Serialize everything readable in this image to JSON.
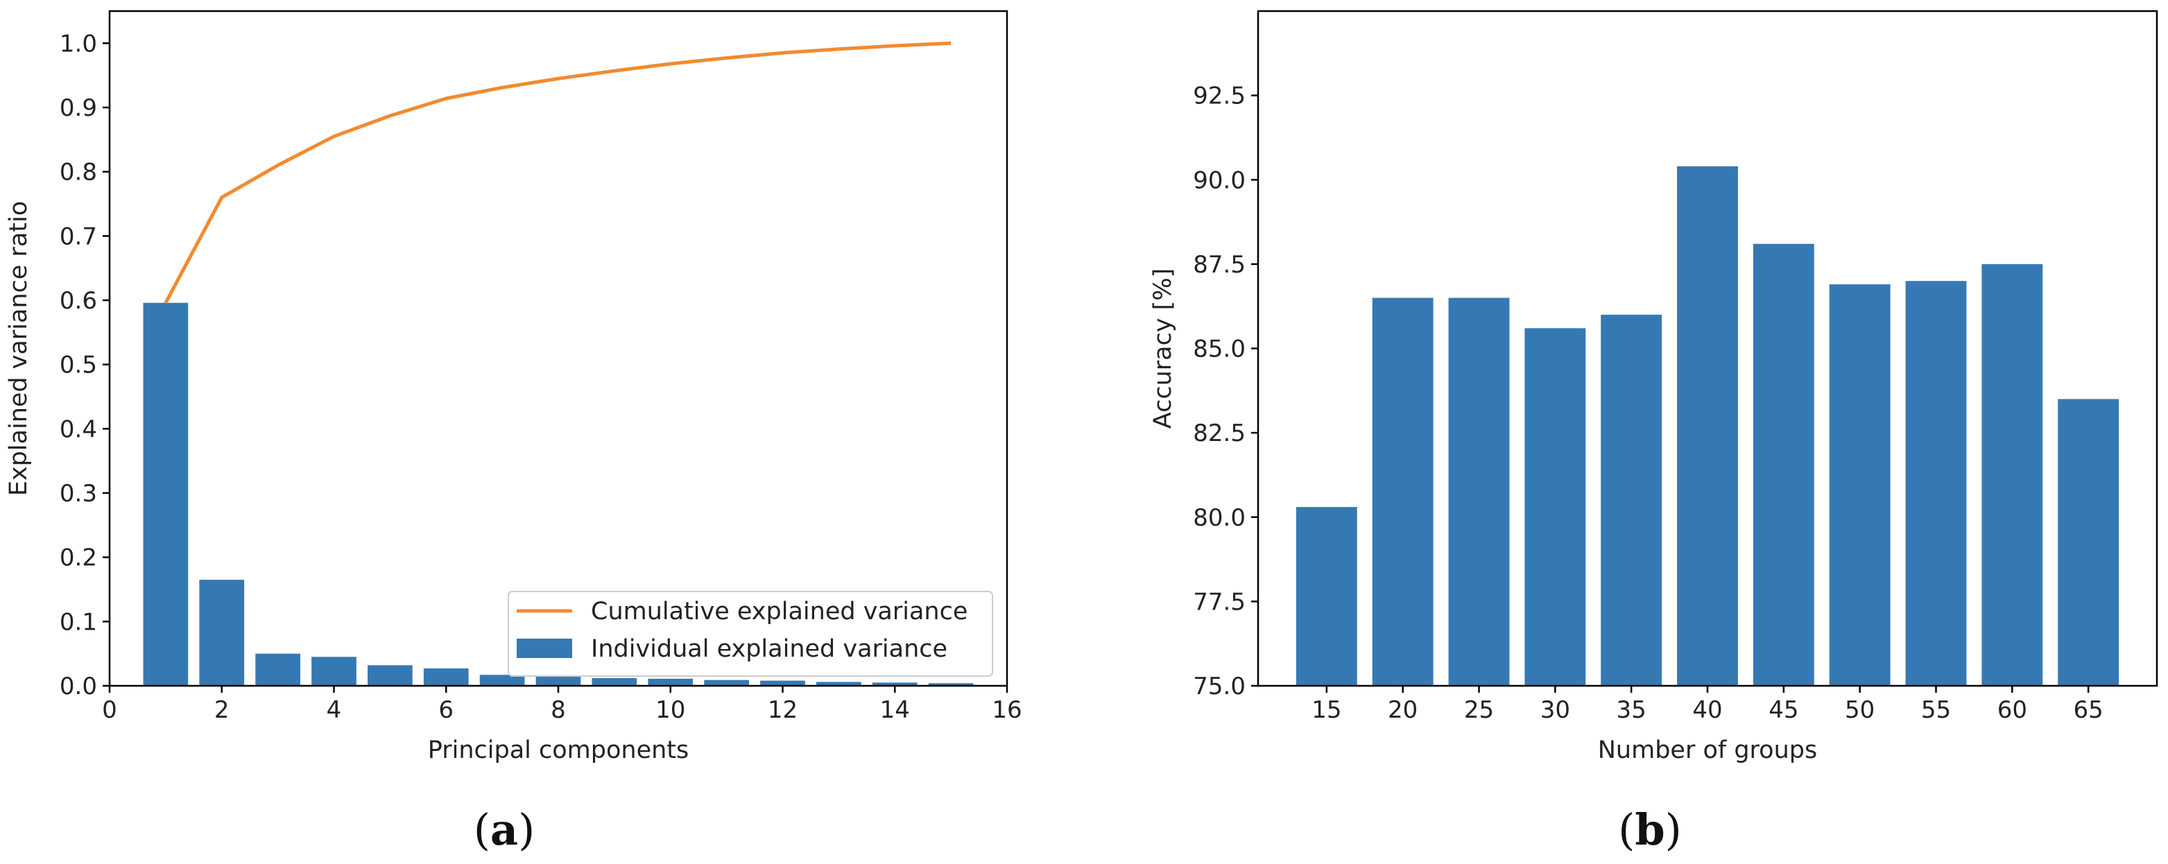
{
  "colors": {
    "bar": "#3579b4",
    "line": "#f28a30",
    "axis": "#000000",
    "text": "#222222"
  },
  "panels": {
    "a": {
      "open": "(",
      "letter": "a",
      "close": ")"
    },
    "b": {
      "open": "(",
      "letter": "b",
      "close": ")"
    }
  },
  "chart_data": [
    {
      "type": "bar",
      "panel": "a",
      "xlabel": "Principal components",
      "ylabel": "Explained variance ratio",
      "xlim": [
        0,
        16
      ],
      "ylim": [
        0,
        1.05
      ],
      "xticks": [
        0,
        2,
        4,
        6,
        8,
        10,
        12,
        14,
        16
      ],
      "xtick_labels": [
        "0",
        "2",
        "4",
        "6",
        "8",
        "10",
        "12",
        "14",
        "16"
      ],
      "yticks": [
        0.0,
        0.1,
        0.2,
        0.3,
        0.4,
        0.5,
        0.6,
        0.7,
        0.8,
        0.9,
        1.0
      ],
      "ytick_labels": [
        "0.0",
        "0.1",
        "0.2",
        "0.3",
        "0.4",
        "0.5",
        "0.6",
        "0.7",
        "0.8",
        "0.9",
        "1.0"
      ],
      "legend_position": "lower-right",
      "x": [
        1,
        2,
        3,
        4,
        5,
        6,
        7,
        8,
        9,
        10,
        11,
        12,
        13,
        14,
        15
      ],
      "series": [
        {
          "name": "Cumulative explained variance",
          "kind": "line",
          "values": [
            0.596,
            0.76,
            0.81,
            0.855,
            0.887,
            0.914,
            0.931,
            0.945,
            0.957,
            0.968,
            0.977,
            0.985,
            0.991,
            0.996,
            1.0
          ]
        },
        {
          "name": "Individual explained variance",
          "kind": "bar",
          "values": [
            0.596,
            0.165,
            0.05,
            0.045,
            0.032,
            0.027,
            0.017,
            0.014,
            0.012,
            0.011,
            0.009,
            0.008,
            0.006,
            0.005,
            0.004
          ]
        }
      ]
    },
    {
      "type": "bar",
      "panel": "b",
      "xlabel": "Number of groups",
      "ylabel": "Accuracy [%]",
      "ylim": [
        75,
        95
      ],
      "yticks": [
        75.0,
        77.5,
        80.0,
        82.5,
        85.0,
        87.5,
        90.0,
        92.5
      ],
      "ytick_labels": [
        "75.0",
        "77.5",
        "80.0",
        "82.5",
        "85.0",
        "87.5",
        "90.0",
        "92.5"
      ],
      "categories": [
        "15",
        "20",
        "25",
        "30",
        "35",
        "40",
        "45",
        "50",
        "55",
        "60",
        "65"
      ],
      "values": [
        80.3,
        86.5,
        86.5,
        85.6,
        86.0,
        90.4,
        88.1,
        86.9,
        87.0,
        87.5,
        83.5
      ]
    }
  ]
}
